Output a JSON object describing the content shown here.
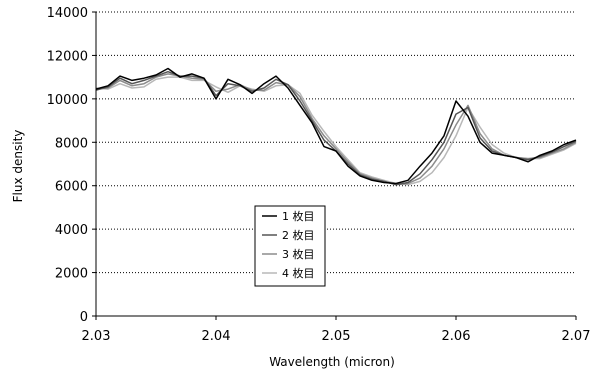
{
  "chart_data": {
    "type": "line",
    "xlabel": "Wavelength (micron)",
    "ylabel": "Flux density",
    "xlim": [
      2.03,
      2.07
    ],
    "ylim": [
      0,
      14000
    ],
    "x_ticks": [
      "2.03",
      "2.04",
      "2.05",
      "2.06",
      "2.07"
    ],
    "y_ticks": [
      "0",
      "2000",
      "4000",
      "6000",
      "8000",
      "10000",
      "12000",
      "14000"
    ],
    "grid": "horizontal dotted",
    "legend_position": "center-left",
    "series": [
      {
        "name": "1 枚目",
        "color": "#000000",
        "x": [
          2.03,
          2.031,
          2.032,
          2.033,
          2.034,
          2.035,
          2.036,
          2.037,
          2.038,
          2.039,
          2.04,
          2.041,
          2.042,
          2.043,
          2.044,
          2.045,
          2.046,
          2.047,
          2.048,
          2.049,
          2.05,
          2.051,
          2.052,
          2.053,
          2.054,
          2.055,
          2.056,
          2.057,
          2.058,
          2.059,
          2.06,
          2.061,
          2.062,
          2.063,
          2.064,
          2.065,
          2.066,
          2.067,
          2.068,
          2.069,
          2.07
        ],
        "y": [
          10450,
          10600,
          11050,
          10850,
          10950,
          11100,
          11400,
          11000,
          11150,
          10950,
          10000,
          10900,
          10650,
          10250,
          10700,
          11050,
          10500,
          9700,
          8900,
          7800,
          7600,
          6900,
          6450,
          6250,
          6150,
          6100,
          6250,
          6900,
          7500,
          8300,
          9900,
          9200,
          8000,
          7500,
          7400,
          7300,
          7100,
          7400,
          7600,
          7900,
          8100
        ]
      },
      {
        "name": "2 枚目",
        "color": "#555555",
        "x": [
          2.03,
          2.031,
          2.032,
          2.033,
          2.034,
          2.035,
          2.036,
          2.037,
          2.038,
          2.039,
          2.04,
          2.041,
          2.042,
          2.043,
          2.044,
          2.045,
          2.046,
          2.047,
          2.048,
          2.049,
          2.05,
          2.051,
          2.052,
          2.053,
          2.054,
          2.055,
          2.056,
          2.057,
          2.058,
          2.059,
          2.06,
          2.061,
          2.062,
          2.063,
          2.064,
          2.065,
          2.066,
          2.067,
          2.068,
          2.069,
          2.07
        ],
        "y": [
          10400,
          10550,
          10950,
          10700,
          10850,
          11050,
          11250,
          11050,
          11050,
          10950,
          10150,
          10700,
          10600,
          10350,
          10500,
          10900,
          10650,
          9900,
          9000,
          8100,
          7600,
          7000,
          6500,
          6300,
          6200,
          6050,
          6150,
          6550,
          7200,
          8000,
          9300,
          9600,
          8200,
          7600,
          7400,
          7300,
          7200,
          7350,
          7550,
          7800,
          8050
        ]
      },
      {
        "name": "3 枚目",
        "color": "#8c8c8c",
        "x": [
          2.03,
          2.031,
          2.032,
          2.033,
          2.034,
          2.035,
          2.036,
          2.037,
          2.038,
          2.039,
          2.04,
          2.041,
          2.042,
          2.043,
          2.044,
          2.045,
          2.046,
          2.047,
          2.048,
          2.049,
          2.05,
          2.051,
          2.052,
          2.053,
          2.054,
          2.055,
          2.056,
          2.057,
          2.058,
          2.059,
          2.06,
          2.061,
          2.062,
          2.063,
          2.064,
          2.065,
          2.066,
          2.067,
          2.068,
          2.069,
          2.07
        ],
        "y": [
          10450,
          10500,
          10850,
          10600,
          10700,
          11000,
          11150,
          11050,
          10950,
          10900,
          10350,
          10450,
          10650,
          10400,
          10400,
          10750,
          10650,
          10100,
          9100,
          8300,
          7700,
          7100,
          6550,
          6350,
          6200,
          6050,
          6100,
          6350,
          6900,
          7700,
          8800,
          9700,
          8400,
          7700,
          7400,
          7300,
          7250,
          7300,
          7500,
          7700,
          8000
        ]
      },
      {
        "name": "4 枚目",
        "color": "#b8b8b8",
        "x": [
          2.03,
          2.031,
          2.032,
          2.033,
          2.034,
          2.035,
          2.036,
          2.037,
          2.038,
          2.039,
          2.04,
          2.041,
          2.042,
          2.043,
          2.044,
          2.045,
          2.046,
          2.047,
          2.048,
          2.049,
          2.05,
          2.051,
          2.052,
          2.053,
          2.054,
          2.055,
          2.056,
          2.057,
          2.058,
          2.059,
          2.06,
          2.061,
          2.062,
          2.063,
          2.064,
          2.065,
          2.066,
          2.067,
          2.068,
          2.069,
          2.07
        ],
        "y": [
          10500,
          10450,
          10700,
          10500,
          10550,
          10900,
          11000,
          11000,
          10850,
          10850,
          10550,
          10300,
          10600,
          10450,
          10350,
          10600,
          10650,
          10250,
          9250,
          8500,
          7800,
          7200,
          6600,
          6400,
          6250,
          6100,
          6050,
          6200,
          6600,
          7300,
          8300,
          9600,
          8700,
          7900,
          7500,
          7300,
          7250,
          7250,
          7450,
          7650,
          7950
        ]
      }
    ]
  }
}
